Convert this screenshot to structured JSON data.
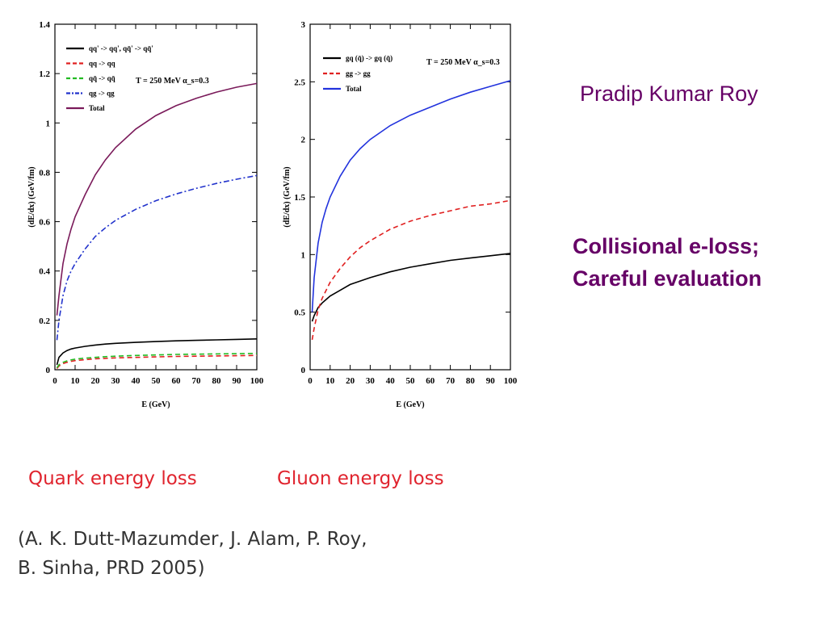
{
  "author": "Pradip Kumar Roy",
  "summary": {
    "line1": "Collisional e-loss;",
    "line2": "Careful evaluation"
  },
  "captions": {
    "quark": "Quark energy loss",
    "gluon": "Gluon energy loss"
  },
  "citation": {
    "line1": "(A. K. Dutt-Mazumder, J. Alam, P. Roy,",
    "line2": "B. Sinha, PRD 2005)"
  },
  "chart_data": [
    {
      "type": "line",
      "xlabel": "E (GeV)",
      "ylabel": "(dE/dx) (GeV/fm)",
      "annotation": "T = 250 MeV   α_s=0.3",
      "xlim": [
        0,
        100
      ],
      "ylim": [
        0,
        1.4
      ],
      "xticks": [
        0,
        10,
        20,
        30,
        40,
        50,
        60,
        70,
        80,
        90,
        100
      ],
      "yticks": [
        0,
        0.2,
        0.4,
        0.6,
        0.8,
        1,
        1.2,
        1.4
      ],
      "x": [
        1,
        2,
        4,
        6,
        8,
        10,
        15,
        20,
        25,
        30,
        40,
        50,
        60,
        70,
        80,
        90,
        100
      ],
      "series": [
        {
          "name": "qq' -> qq',   qq̄' -> qq̄'",
          "color": "#000000",
          "dash": "solid",
          "values": [
            0.02,
            0.05,
            0.068,
            0.078,
            0.084,
            0.088,
            0.095,
            0.1,
            0.104,
            0.107,
            0.111,
            0.114,
            0.117,
            0.119,
            0.121,
            0.123,
            0.125
          ]
        },
        {
          "name": "qq -> qq",
          "color": "#e02020",
          "dash": "dash",
          "values": [
            0.005,
            0.015,
            0.025,
            0.03,
            0.034,
            0.037,
            0.041,
            0.044,
            0.046,
            0.048,
            0.05,
            0.052,
            0.054,
            0.055,
            0.056,
            0.057,
            0.058
          ]
        },
        {
          "name": "qq̄ -> qq̄",
          "color": "#22bb22",
          "dash": "dash",
          "values": [
            0.008,
            0.02,
            0.03,
            0.036,
            0.04,
            0.043,
            0.047,
            0.05,
            0.053,
            0.055,
            0.058,
            0.06,
            0.062,
            0.063,
            0.064,
            0.065,
            0.066
          ]
        },
        {
          "name": "qg -> qg",
          "color": "#2233cc",
          "dash": "dashdot",
          "values": [
            0.12,
            0.2,
            0.3,
            0.36,
            0.4,
            0.43,
            0.49,
            0.54,
            0.575,
            0.605,
            0.65,
            0.685,
            0.712,
            0.735,
            0.755,
            0.772,
            0.787
          ]
        },
        {
          "name": "Total",
          "color": "#7a1a5a",
          "dash": "solid",
          "values": [
            0.22,
            0.3,
            0.43,
            0.51,
            0.57,
            0.62,
            0.71,
            0.79,
            0.85,
            0.9,
            0.975,
            1.03,
            1.07,
            1.1,
            1.125,
            1.145,
            1.16
          ]
        }
      ]
    },
    {
      "type": "line",
      "xlabel": "E (GeV)",
      "ylabel": "(dE/dx) (GeV/fm)",
      "annotation": "T = 250 MeV   α_s=0.3",
      "xlim": [
        0,
        100
      ],
      "ylim": [
        0,
        3
      ],
      "xticks": [
        0,
        10,
        20,
        30,
        40,
        50,
        60,
        70,
        80,
        90,
        100
      ],
      "yticks": [
        0,
        0.5,
        1,
        1.5,
        2,
        2.5,
        3
      ],
      "x": [
        1,
        2,
        4,
        6,
        8,
        10,
        15,
        20,
        25,
        30,
        40,
        50,
        60,
        70,
        80,
        90,
        100
      ],
      "series": [
        {
          "name": "gq (q̄) -> gq (q̄)",
          "color": "#000000",
          "dash": "solid",
          "values": [
            0.42,
            0.47,
            0.54,
            0.58,
            0.61,
            0.64,
            0.69,
            0.74,
            0.77,
            0.8,
            0.85,
            0.89,
            0.92,
            0.95,
            0.97,
            0.99,
            1.01
          ]
        },
        {
          "name": "gg -> gg",
          "color": "#e02020",
          "dash": "dash",
          "values": [
            0.26,
            0.36,
            0.52,
            0.62,
            0.69,
            0.76,
            0.88,
            0.98,
            1.06,
            1.12,
            1.22,
            1.29,
            1.34,
            1.38,
            1.42,
            1.44,
            1.47
          ]
        },
        {
          "name": "Total",
          "color": "#2233dd",
          "dash": "solid",
          "values": [
            0.5,
            0.8,
            1.1,
            1.28,
            1.4,
            1.5,
            1.68,
            1.82,
            1.92,
            2.0,
            2.12,
            2.21,
            2.28,
            2.35,
            2.41,
            2.46,
            2.51
          ]
        }
      ]
    }
  ]
}
